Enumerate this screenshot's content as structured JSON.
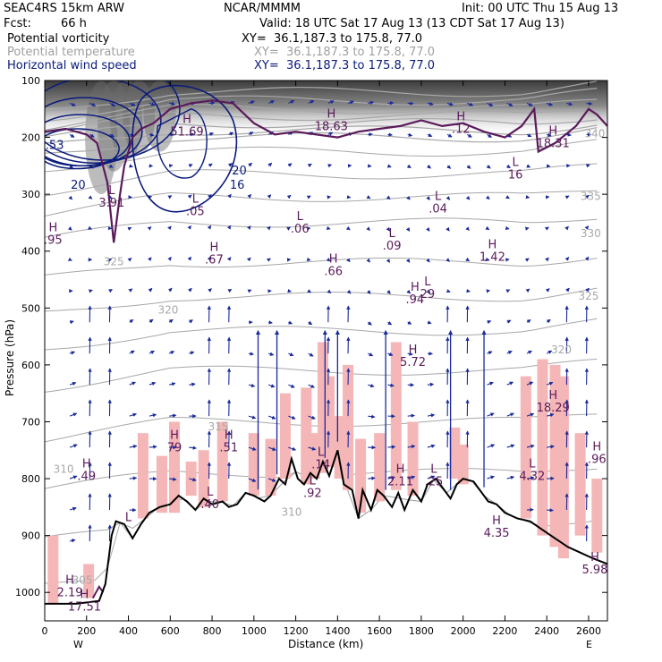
{
  "header": {
    "model": "SEAC4RS 15km ARW",
    "org": "NCAR/MMMM",
    "init": "Init: 00 UTC Thu 15 Aug 13",
    "fcst_label": "Fcst:",
    "fcst_value": "66 h",
    "valid": "Valid: 18 UTC Sat 17 Aug 13 (13 CDT Sat 17 Aug 13)",
    "fields": [
      {
        "name": "Potential vorticity",
        "xy": "XY=  36.1,187.3 to 175.8, 77.0",
        "color": "#000000"
      },
      {
        "name": "Potential temperature",
        "xy": "XY=  36.1,187.3 to 175.8, 77.0",
        "color": "#a0a0a0"
      },
      {
        "name": "Horizontal wind speed",
        "xy": "XY=  36.1,187.3 to 175.8, 77.0",
        "color": "#0a1a7a"
      }
    ]
  },
  "chart_data": {
    "type": "cross-section",
    "xlabel": "Distance (km)",
    "ylabel": "Pressure (hPa)",
    "x_range": [
      0,
      2690
    ],
    "y_range": [
      1050,
      100
    ],
    "x_ticks": [
      0,
      200,
      400,
      600,
      800,
      1000,
      1200,
      1400,
      1600,
      1800,
      2000,
      2200,
      2400,
      2600
    ],
    "y_ticks": [
      100,
      200,
      300,
      400,
      500,
      600,
      700,
      800,
      900,
      1000
    ],
    "x_end_labels": {
      "left": "W",
      "right": "E"
    },
    "terrain": [
      [
        0,
        1020
      ],
      [
        150,
        1020
      ],
      [
        260,
        1015
      ],
      [
        290,
        985
      ],
      [
        320,
        900
      ],
      [
        340,
        875
      ],
      [
        380,
        880
      ],
      [
        420,
        905
      ],
      [
        460,
        880
      ],
      [
        500,
        860
      ],
      [
        550,
        850
      ],
      [
        600,
        845
      ],
      [
        640,
        830
      ],
      [
        680,
        840
      ],
      [
        720,
        855
      ],
      [
        760,
        835
      ],
      [
        800,
        845
      ],
      [
        850,
        840
      ],
      [
        880,
        850
      ],
      [
        920,
        845
      ],
      [
        960,
        825
      ],
      [
        1000,
        830
      ],
      [
        1050,
        840
      ],
      [
        1080,
        830
      ],
      [
        1120,
        800
      ],
      [
        1150,
        810
      ],
      [
        1180,
        765
      ],
      [
        1210,
        800
      ],
      [
        1240,
        810
      ],
      [
        1270,
        790
      ],
      [
        1300,
        800
      ],
      [
        1330,
        770
      ],
      [
        1360,
        795
      ],
      [
        1400,
        750
      ],
      [
        1430,
        810
      ],
      [
        1470,
        820
      ],
      [
        1500,
        870
      ],
      [
        1520,
        820
      ],
      [
        1560,
        855
      ],
      [
        1590,
        820
      ],
      [
        1620,
        830
      ],
      [
        1660,
        850
      ],
      [
        1690,
        825
      ],
      [
        1720,
        855
      ],
      [
        1760,
        820
      ],
      [
        1800,
        840
      ],
      [
        1830,
        810
      ],
      [
        1870,
        800
      ],
      [
        1900,
        815
      ],
      [
        1940,
        835
      ],
      [
        1970,
        810
      ],
      [
        2000,
        800
      ],
      [
        2050,
        805
      ],
      [
        2080,
        820
      ],
      [
        2120,
        840
      ],
      [
        2160,
        845
      ],
      [
        2200,
        860
      ],
      [
        2260,
        870
      ],
      [
        2320,
        875
      ],
      [
        2380,
        890
      ],
      [
        2440,
        905
      ],
      [
        2500,
        920
      ],
      [
        2560,
        930
      ],
      [
        2620,
        940
      ],
      [
        2690,
        950
      ]
    ],
    "hl_markers": [
      {
        "t": "H",
        "v": "51.69",
        "x": 680,
        "p": 175
      },
      {
        "t": "H",
        "v": "18.63",
        "x": 1370,
        "p": 165
      },
      {
        "t": "H",
        "v": ".12",
        "x": 1990,
        "p": 170
      },
      {
        "t": "H",
        "v": "18.31",
        "x": 2430,
        "p": 195
      },
      {
        "t": "L",
        "v": "16",
        "x": 2250,
        "p": 250
      },
      {
        "t": "L",
        "v": "3.91",
        "x": 320,
        "p": 300
      },
      {
        "t": "L",
        "v": ".05",
        "x": 720,
        "p": 315
      },
      {
        "t": "L",
        "v": ".06",
        "x": 1220,
        "p": 345
      },
      {
        "t": "L",
        "v": ".09",
        "x": 1660,
        "p": 375
      },
      {
        "t": "L",
        "v": ".04",
        "x": 1880,
        "p": 310
      },
      {
        "t": "H",
        "v": ".67",
        "x": 810,
        "p": 400
      },
      {
        "t": "H",
        "v": "1.42",
        "x": 2140,
        "p": 395
      },
      {
        "t": "H",
        "v": ".66",
        "x": 1380,
        "p": 420
      },
      {
        "t": "H",
        "v": ".94",
        "x": 1770,
        "p": 470
      },
      {
        "t": "L",
        "v": "29",
        "x": 1830,
        "p": 460
      },
      {
        "t": "H",
        "v": "5.72",
        "x": 1760,
        "p": 580
      },
      {
        "t": "H",
        "v": "18.29",
        "x": 2430,
        "p": 660
      },
      {
        "t": "H",
        "v": "79",
        "x": 620,
        "p": 730
      },
      {
        "t": "H",
        "v": ".51",
        "x": 880,
        "p": 730
      },
      {
        "t": "H",
        "v": ".49",
        "x": 200,
        "p": 780
      },
      {
        "t": "L",
        "v": ".14",
        "x": 1320,
        "p": 760
      },
      {
        "t": "L",
        "v": "4.32",
        "x": 2330,
        "p": 780
      },
      {
        "t": "H",
        "v": ".96",
        "x": 2640,
        "p": 750
      },
      {
        "t": "H",
        "v": "2.11",
        "x": 1700,
        "p": 790
      },
      {
        "t": "L",
        "v": ".25",
        "x": 1860,
        "p": 790
      },
      {
        "t": "L",
        "v": ".92",
        "x": 1280,
        "p": 810
      },
      {
        "t": "L",
        "v": ".40",
        "x": 790,
        "p": 830
      },
      {
        "t": "H",
        "v": "4.35",
        "x": 2160,
        "p": 880
      },
      {
        "t": "H",
        "v": "5.98",
        "x": 2630,
        "p": 945
      },
      {
        "t": "L",
        "v": "",
        "x": 400,
        "p": 875
      },
      {
        "t": "H",
        "v": "2.19",
        "x": 120,
        "p": 985
      },
      {
        "t": "H",
        "v": "17.51",
        "x": 190,
        "p": 1010
      },
      {
        "t": "H",
        "v": ".95",
        "x": 40,
        "p": 365
      }
    ],
    "theta_labels": [
      {
        "v": "340",
        "x": 2630,
        "p": 200
      },
      {
        "v": "335",
        "x": 2610,
        "p": 310
      },
      {
        "v": "330",
        "x": 2610,
        "p": 375
      },
      {
        "v": "325",
        "x": 330,
        "p": 425
      },
      {
        "v": "325",
        "x": 2600,
        "p": 485
      },
      {
        "v": "320",
        "x": 590,
        "p": 510
      },
      {
        "v": "320",
        "x": 2470,
        "p": 580
      },
      {
        "v": "315",
        "x": 830,
        "p": 715
      },
      {
        "v": "310",
        "x": 90,
        "p": 790
      },
      {
        "v": "310",
        "x": 1180,
        "p": 865
      },
      {
        "v": "305",
        "x": 180,
        "p": 985
      }
    ],
    "wind_labels": [
      {
        "v": "20",
        "x": 160,
        "p": 290
      },
      {
        "v": "16",
        "x": 920,
        "p": 290
      },
      {
        "v": "20",
        "x": 930,
        "p": 265
      },
      {
        "v": "5.53",
        "x": 30,
        "p": 220
      }
    ]
  }
}
